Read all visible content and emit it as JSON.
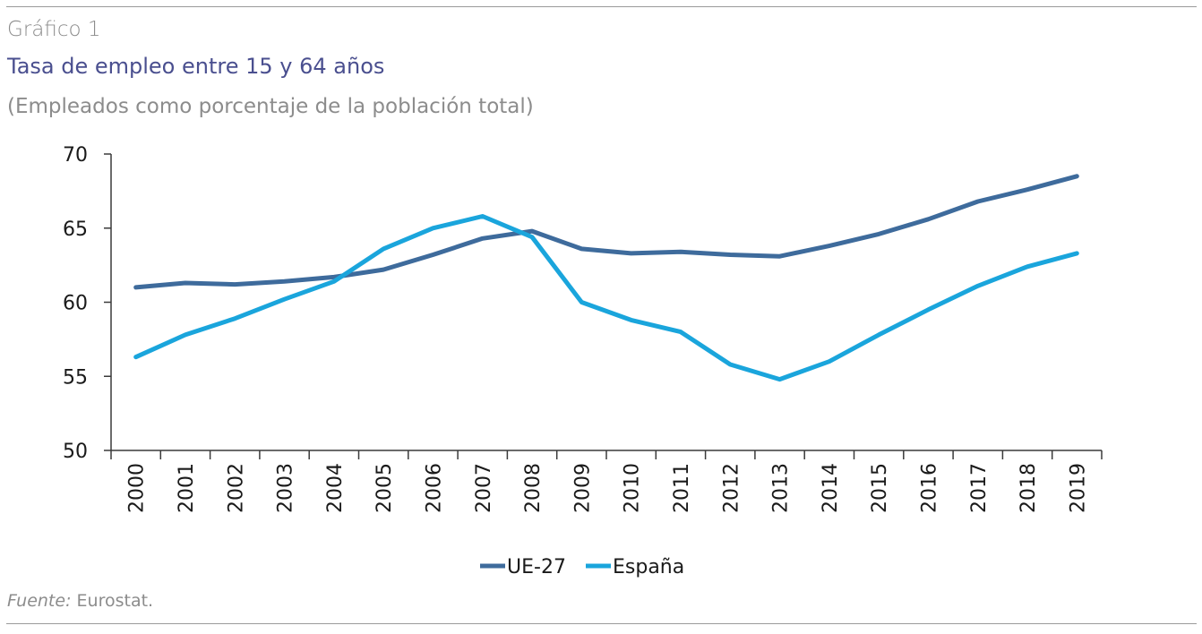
{
  "header": {
    "kicker": "Gráfico 1",
    "title": "Tasa de empleo entre 15 y 64 años",
    "subtitle": "(Empleados como porcentaje de la población total)"
  },
  "footer": {
    "source_label": "Fuente:",
    "source_value": " Eurostat."
  },
  "chart_data": {
    "type": "line",
    "title": "Tasa de empleo entre 15 y 64 años",
    "subtitle": "(Empleados como porcentaje de la población total)",
    "xlabel": "",
    "ylabel": "",
    "ylim": [
      50,
      70
    ],
    "yticks": [
      50,
      55,
      60,
      65,
      70
    ],
    "grid": false,
    "legend_position": "bottom",
    "categories": [
      "2000",
      "2001",
      "2002",
      "2003",
      "2004",
      "2005",
      "2006",
      "2007",
      "2008",
      "2009",
      "2010",
      "2011",
      "2012",
      "2013",
      "2014",
      "2015",
      "2016",
      "2017",
      "2018",
      "2019"
    ],
    "series": [
      {
        "name": "UE-27",
        "color": "#3e6b9c",
        "values": [
          61.0,
          61.3,
          61.2,
          61.4,
          61.7,
          62.2,
          63.2,
          64.3,
          64.8,
          63.6,
          63.3,
          63.4,
          63.2,
          63.1,
          63.8,
          64.6,
          65.6,
          66.8,
          67.6,
          68.5
        ]
      },
      {
        "name": "España",
        "color": "#1aa5dc",
        "values": [
          56.3,
          57.8,
          58.9,
          60.2,
          61.4,
          63.6,
          65.0,
          65.8,
          64.4,
          60.0,
          58.8,
          58.0,
          55.8,
          54.8,
          56.0,
          57.8,
          59.5,
          61.1,
          62.4,
          63.3
        ]
      }
    ]
  }
}
